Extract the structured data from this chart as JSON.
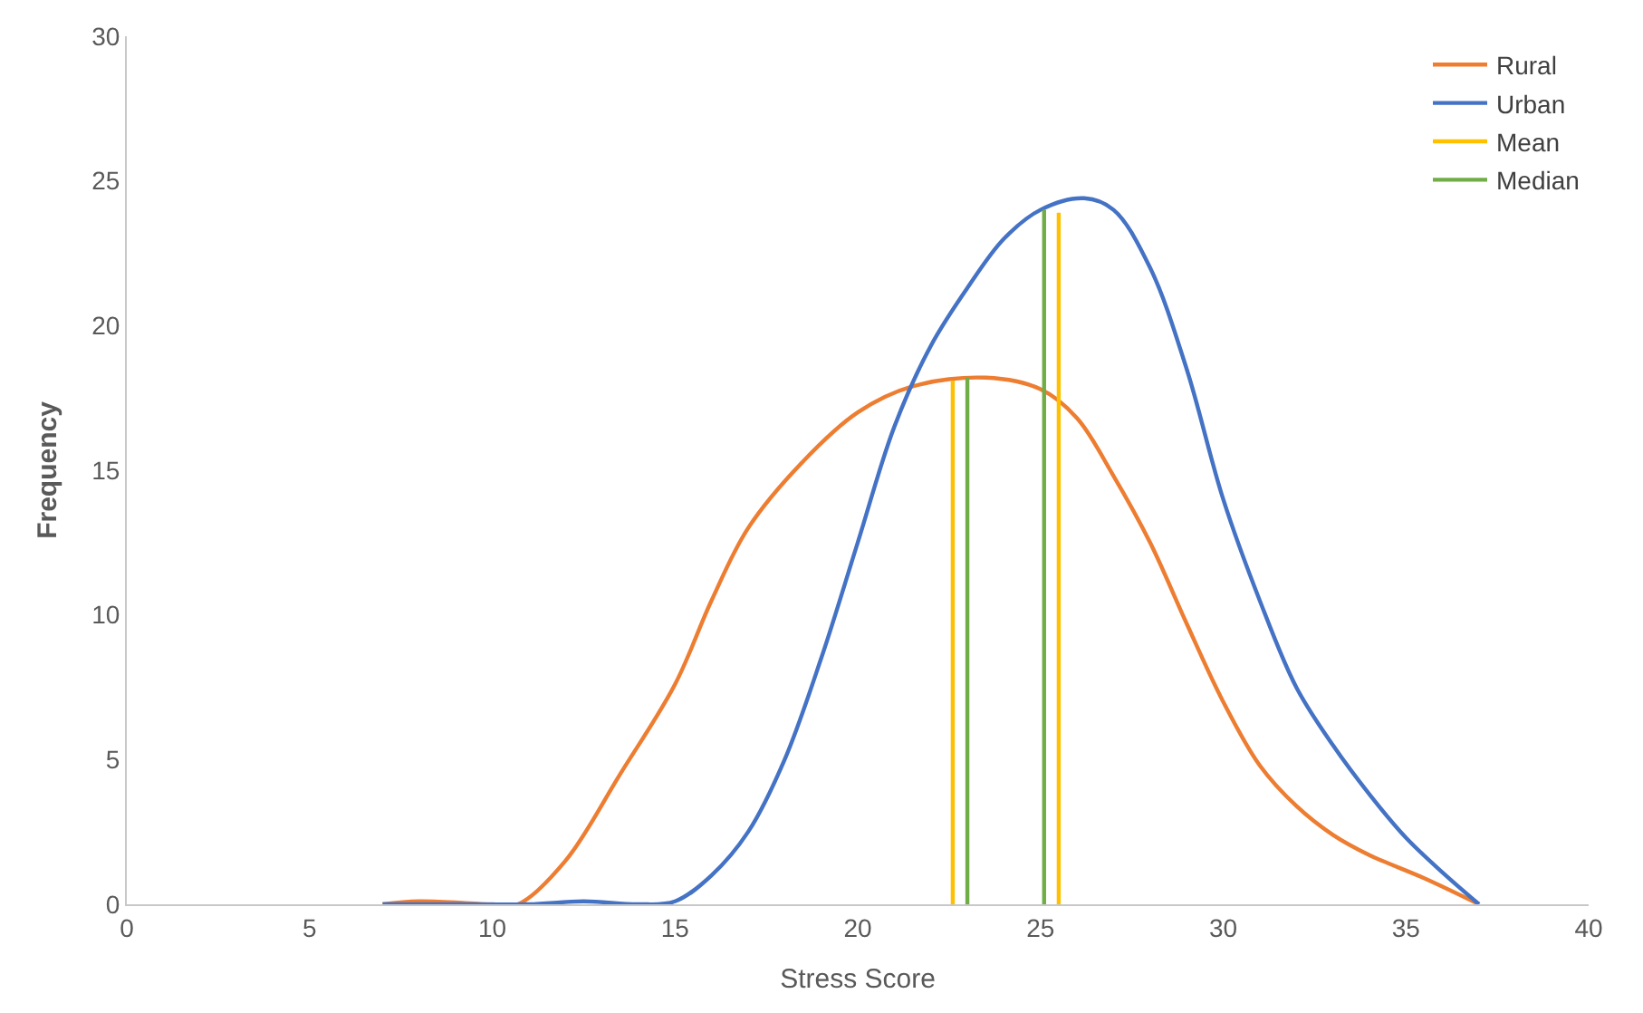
{
  "chart_data": {
    "type": "line",
    "xlabel": "Stress Score",
    "ylabel": "Frequency",
    "xlim": [
      0,
      40
    ],
    "xticks": [
      0,
      5,
      10,
      15,
      20,
      25,
      30,
      35,
      40
    ],
    "ylim": [
      0,
      30
    ],
    "yticks": [
      0,
      5,
      10,
      15,
      20,
      25,
      30
    ],
    "legend": "top right",
    "marker": "none",
    "line_style": "solid",
    "series": [
      {
        "name": "Rural",
        "color": "#ed7d31",
        "x": [
          7,
          8,
          10,
          10.7,
          12,
          13.5,
          15,
          16,
          17,
          18.5,
          20,
          21.5,
          23.5,
          25,
          26,
          27,
          28,
          29,
          30,
          31,
          32,
          33,
          34,
          35.5,
          37
        ],
        "values": [
          0,
          0.1,
          0,
          0,
          1.5,
          4.5,
          7.6,
          10.5,
          13,
          15.3,
          17,
          17.9,
          18.2,
          17.8,
          16.8,
          14.8,
          12.5,
          9.7,
          7,
          4.8,
          3.4,
          2.4,
          1.7,
          0.9,
          0
        ]
      },
      {
        "name": "Urban",
        "color": "#4472c4",
        "x": [
          7,
          9,
          11,
          12.5,
          14,
          15,
          16,
          17,
          18,
          19,
          20,
          21,
          22,
          23,
          24,
          25,
          26.2,
          27,
          28,
          29,
          30,
          31,
          32,
          33,
          34,
          35,
          36,
          37
        ],
        "values": [
          0,
          0,
          0,
          0.1,
          0,
          0.1,
          1,
          2.5,
          5,
          8.5,
          12.5,
          16.5,
          19.3,
          21.3,
          23,
          24,
          24.4,
          24,
          22,
          18.5,
          14,
          10.5,
          7.5,
          5.5,
          3.8,
          2.3,
          1.1,
          0
        ]
      },
      {
        "name": "Mean",
        "color": "#ffc000",
        "x": [
          22.6,
          22.6,
          null,
          25.5,
          25.5
        ],
        "values": [
          0,
          18.1,
          null,
          0,
          23.9
        ]
      },
      {
        "name": "Median",
        "color": "#70ad47",
        "x": [
          23.0,
          23.0,
          null,
          25.1,
          25.1
        ],
        "values": [
          0,
          18.2,
          null,
          0,
          24.0
        ]
      }
    ]
  }
}
